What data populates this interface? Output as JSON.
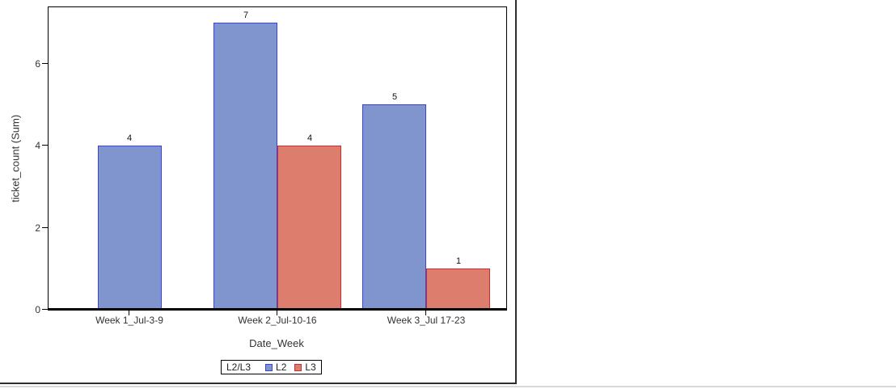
{
  "chart_data": {
    "type": "bar",
    "title": "",
    "xlabel": "Date_Week",
    "ylabel": "ticket_count (Sum)",
    "categories": [
      "Week 1_Jul-3-9",
      "Week 2_Jul-10-16",
      "Week 3_Jul 17-23"
    ],
    "series": [
      {
        "name": "L2",
        "values": [
          4,
          7,
          5
        ],
        "fill": "#8094CE",
        "border": "#3C44D8"
      },
      {
        "name": "L3",
        "values": [
          null,
          4,
          1
        ],
        "fill": "#DD7D6E",
        "border": "#C43030"
      }
    ],
    "yticks": [
      0,
      2,
      4,
      6
    ],
    "ylim": [
      0,
      7.4
    ],
    "grid": false,
    "legend": {
      "title": "L2/L3",
      "position": "bottom"
    }
  },
  "colors": {
    "frame": "#000000",
    "axis_text": "#333333",
    "value_text": "#111111",
    "window_border": "#2e2e2e",
    "window_shadow": "#d9d9d9",
    "background": "#ffffff"
  }
}
